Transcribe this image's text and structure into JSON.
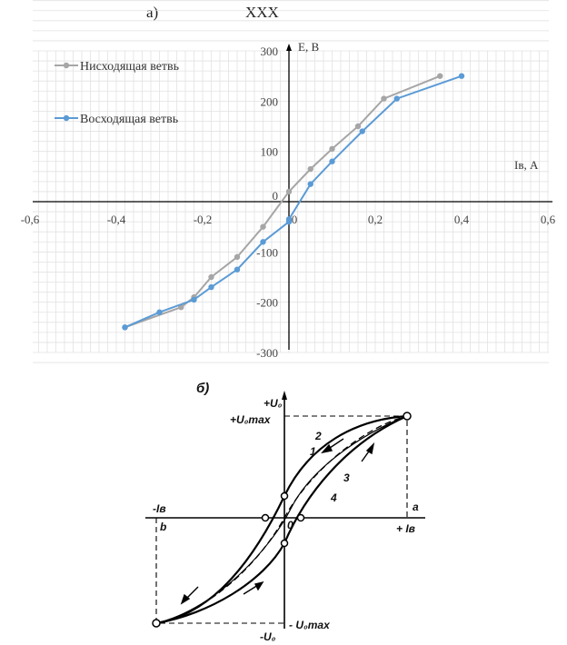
{
  "header": {
    "part_a_label": "а)",
    "part_a_title": "XXX",
    "part_b_label": "б)"
  },
  "chart_data": [
    {
      "type": "line",
      "title": "XXX",
      "xlabel": "Iв, А",
      "ylabel": "Е, В",
      "xlim": [
        -0.6,
        0.6
      ],
      "ylim": [
        -300,
        300
      ],
      "x_ticks": [
        "-0,6",
        "-0,4",
        "-0,2",
        "0",
        "0,2",
        "0,4",
        "0,6"
      ],
      "y_ticks": [
        "300",
        "200",
        "100",
        "0",
        "-100",
        "-200",
        "-300"
      ],
      "grid": true,
      "legend_position": "top-left",
      "series": [
        {
          "name": "Нисходящая ветвь",
          "color": "#a6a6a6",
          "points": [
            [
              0.35,
              250
            ],
            [
              0.22,
              205
            ],
            [
              0.16,
              150
            ],
            [
              0.1,
              105
            ],
            [
              0.05,
              65
            ],
            [
              0.0,
              20
            ],
            [
              -0.06,
              -50
            ],
            [
              -0.12,
              -110
            ],
            [
              -0.18,
              -150
            ],
            [
              -0.22,
              -190
            ],
            [
              -0.25,
              -210
            ],
            [
              -0.38,
              -250
            ]
          ]
        },
        {
          "name": "Восходящая ветвь",
          "color": "#5b9bd5",
          "points": [
            [
              -0.38,
              -250
            ],
            [
              -0.3,
              -220
            ],
            [
              -0.22,
              -195
            ],
            [
              -0.18,
              -170
            ],
            [
              -0.12,
              -135
            ],
            [
              -0.06,
              -80
            ],
            [
              0.0,
              -40
            ],
            [
              0.0,
              -35
            ],
            [
              0.05,
              35
            ],
            [
              0.1,
              80
            ],
            [
              0.17,
              140
            ],
            [
              0.25,
              205
            ],
            [
              0.4,
              250
            ]
          ]
        }
      ]
    },
    {
      "type": "line",
      "title": "",
      "labels": {
        "u_pos": "+U₀",
        "u_pos_max": "+U₀max",
        "u_neg": "-U₀",
        "u_neg_max": "- U₀max",
        "i_pos": "+ Iв",
        "i_neg": "-Iв",
        "origin": "0",
        "point_a": "a",
        "point_b": "b",
        "curve_1": "1",
        "curve_2": "2",
        "curve_3": "3",
        "curve_4": "4"
      }
    }
  ]
}
